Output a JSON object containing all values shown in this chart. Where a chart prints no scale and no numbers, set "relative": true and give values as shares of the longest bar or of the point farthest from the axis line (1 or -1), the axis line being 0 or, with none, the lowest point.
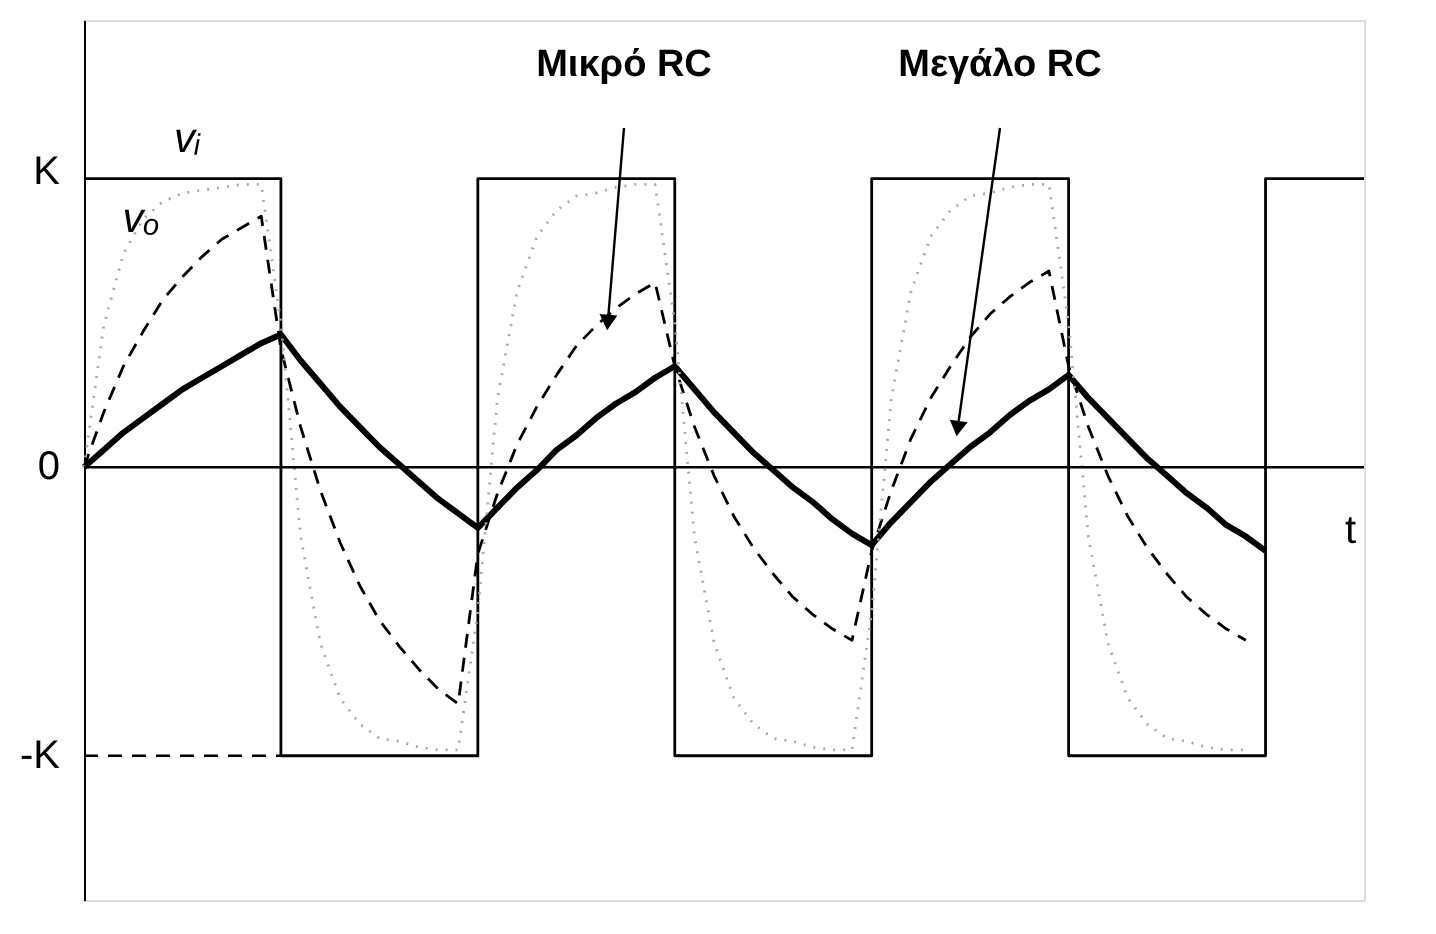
{
  "chart_data": {
    "type": "line",
    "xlabel": "t",
    "relative": true,
    "grid": false,
    "marker": "none",
    "categories": [
      null,
      null,
      null,
      null,
      null,
      null,
      null,
      null,
      null,
      null,
      null,
      null,
      null,
      null,
      null,
      null,
      null,
      null,
      null,
      null,
      null,
      null,
      null,
      null,
      null,
      null,
      null,
      null,
      null,
      null,
      null,
      null,
      null,
      null,
      null,
      null,
      null,
      null,
      null,
      null,
      null,
      null,
      null,
      null,
      null,
      null,
      null,
      null,
      null,
      null,
      null,
      null,
      null,
      null,
      null,
      null,
      null,
      null,
      null,
      null,
      null,
      null,
      null,
      null,
      null,
      null
    ],
    "series": [
      {
        "type": "step",
        "color": "#000000",
        "line_style": "solid",
        "values": [
          1,
          1,
          1,
          1,
          1,
          1,
          1,
          1,
          1,
          1,
          -1,
          -1,
          -1,
          -1,
          -1,
          -1,
          -1,
          -1,
          -1,
          -1,
          1,
          1,
          1,
          1,
          1,
          1,
          1,
          1,
          1,
          1,
          -1,
          -1,
          -1,
          -1,
          -1,
          -1,
          -1,
          -1,
          -1,
          -1,
          1,
          1,
          1,
          1,
          1,
          1,
          1,
          1,
          1,
          1,
          -1,
          -1,
          -1,
          -1,
          -1,
          -1,
          -1,
          -1,
          -1,
          -1,
          1,
          1,
          1,
          1,
          1,
          1
        ]
      },
      {
        "color": "#000000",
        "line_style": "dashed",
        "values": [
          0,
          0.19,
          0.35,
          0.47,
          0.58,
          0.66,
          0.73,
          0.79,
          0.83,
          0.87,
          0.41,
          0.14,
          -0.08,
          -0.26,
          -0.41,
          -0.53,
          -0.62,
          -0.7,
          -0.77,
          -0.82,
          -0.3,
          -0.09,
          0.08,
          0.21,
          0.32,
          0.42,
          0.49,
          0.55,
          0.6,
          0.64,
          0.35,
          0.14,
          -0.03,
          -0.17,
          -0.28,
          -0.37,
          -0.45,
          -0.51,
          -0.56,
          -0.6,
          -0.29,
          -0.08,
          0.1,
          0.24,
          0.35,
          0.45,
          0.53,
          0.59,
          0.64,
          0.68,
          0.35,
          0.14,
          -0.03,
          -0.17,
          -0.28,
          -0.37,
          -0.45,
          -0.51,
          -0.56,
          -0.6,
          null,
          null,
          null,
          null,
          null,
          null
        ]
      },
      {
        "color": "#000000",
        "line_style": "solid",
        "values": [
          0,
          0.06,
          0.12,
          0.17,
          0.22,
          0.27,
          0.31,
          0.35,
          0.39,
          0.43,
          0.46,
          0.37,
          0.29,
          0.21,
          0.14,
          0.07,
          0.01,
          -0.05,
          -0.11,
          -0.16,
          -0.21,
          -0.14,
          -0.07,
          -0.01,
          0.06,
          0.11,
          0.17,
          0.22,
          0.26,
          0.31,
          0.35,
          0.27,
          0.19,
          0.12,
          0.05,
          -0.01,
          -0.07,
          -0.12,
          -0.18,
          -0.23,
          -0.27,
          -0.19,
          -0.12,
          -0.05,
          0.01,
          0.07,
          0.12,
          0.18,
          0.23,
          0.27,
          0.32,
          0.24,
          0.17,
          0.1,
          0.03,
          -0.03,
          -0.09,
          -0.14,
          -0.2,
          -0.24,
          -0.29,
          null,
          null,
          null,
          null,
          null
        ]
      },
      {
        "color": "#aaaaaa",
        "line_style": "dotted",
        "values": [
          0,
          0.49,
          0.74,
          0.86,
          0.92,
          0.95,
          0.96,
          0.97,
          0.98,
          0.98,
          0.5,
          -0.24,
          -0.61,
          -0.8,
          -0.89,
          -0.94,
          -0.95,
          -0.97,
          -0.98,
          -0.98,
          -0.5,
          0.24,
          0.61,
          0.8,
          0.89,
          0.94,
          0.95,
          0.97,
          0.98,
          0.98,
          0.5,
          -0.24,
          -0.61,
          -0.8,
          -0.89,
          -0.94,
          -0.95,
          -0.97,
          -0.98,
          -0.98,
          -0.5,
          0.24,
          0.61,
          0.8,
          0.89,
          0.94,
          0.95,
          0.97,
          0.98,
          0.98,
          0.5,
          -0.24,
          -0.61,
          -0.8,
          -0.89,
          -0.94,
          -0.95,
          -0.97,
          -0.98,
          -0.98,
          null,
          null,
          null,
          null,
          null,
          null
        ]
      }
    ],
    "ref_lines": [
      {
        "axis": "y",
        "value": 0,
        "label": "0",
        "line_style": "solid",
        "color": "#000000"
      },
      {
        "axis": "y",
        "value": -1,
        "label": "-K",
        "line_style": "dashed",
        "color": "#000000"
      }
    ],
    "annotations": [
      "K",
      "vᵢ",
      "vₒ",
      "Μικρό RC",
      "Μεγάλο RC"
    ]
  }
}
